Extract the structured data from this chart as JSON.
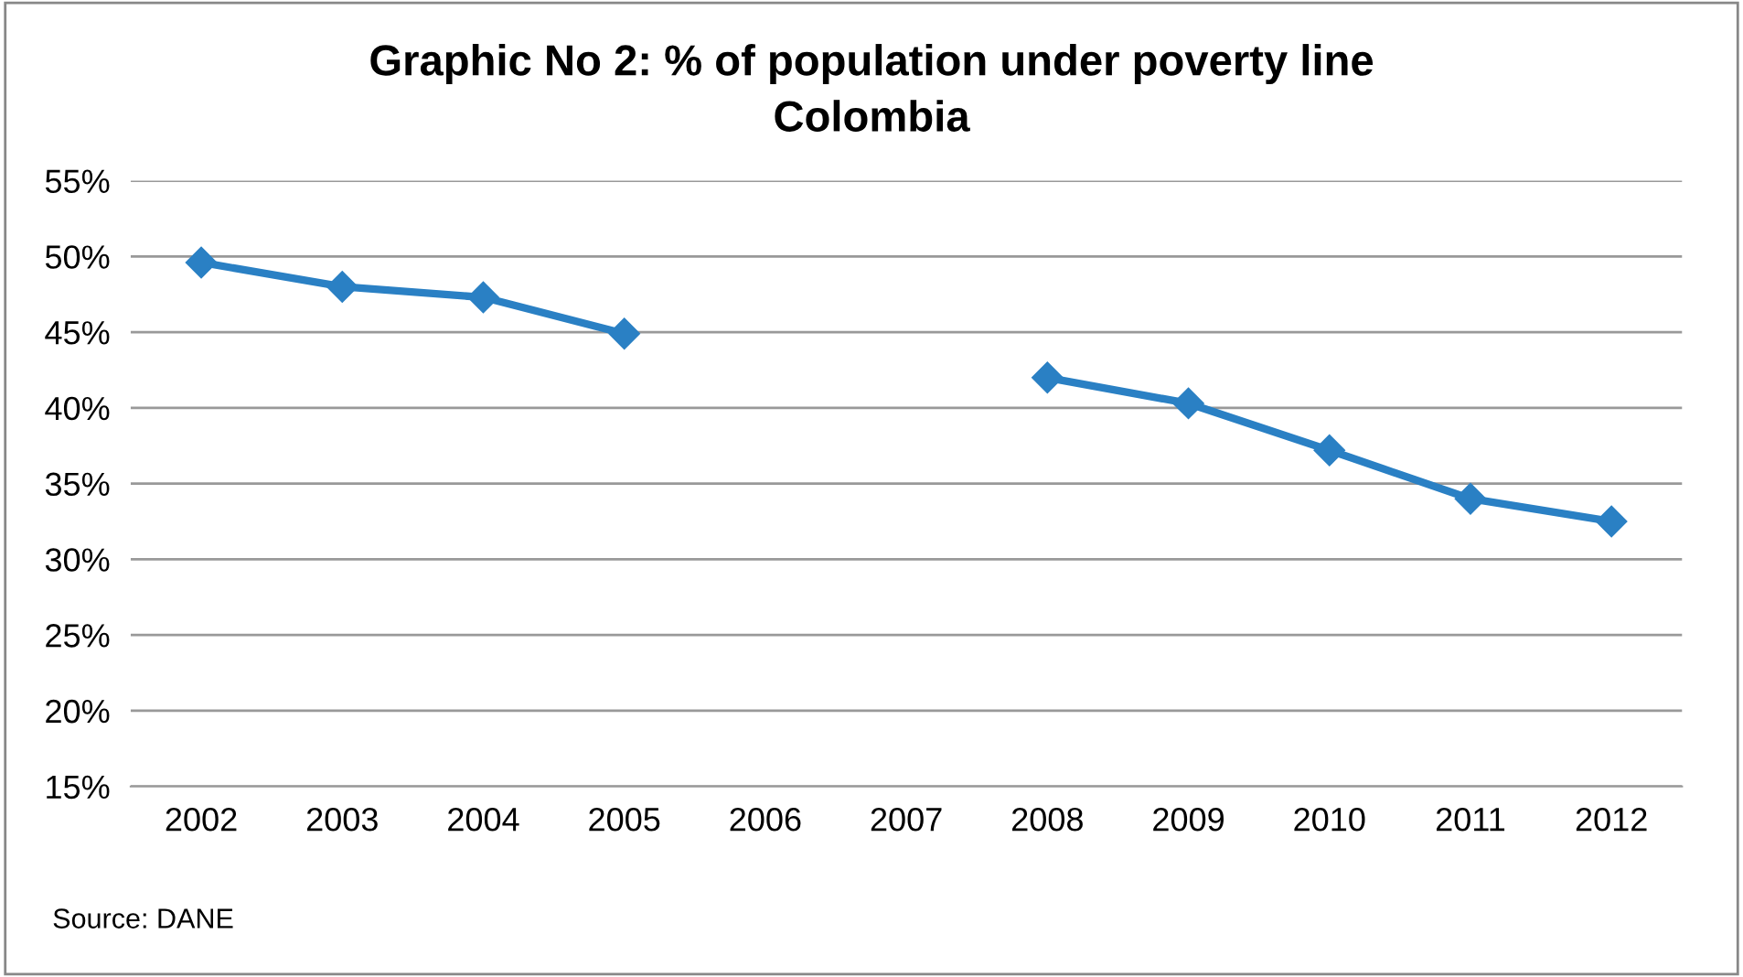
{
  "chart_data": {
    "type": "line",
    "title": "Graphic No 2: % of population under poverty line\nColombia",
    "categories": [
      "2002",
      "2003",
      "2004",
      "2005",
      "2006",
      "2007",
      "2008",
      "2009",
      "2010",
      "2011",
      "2012"
    ],
    "series": [
      {
        "color": "#2a80c4",
        "values": [
          49.6,
          48.0,
          47.3,
          44.9,
          null,
          null,
          42.0,
          40.3,
          37.2,
          34.0,
          32.5
        ]
      }
    ],
    "ylim": [
      15,
      55
    ],
    "yticks": [
      {
        "value": 15,
        "label": "15%"
      },
      {
        "value": 20,
        "label": "20%"
      },
      {
        "value": 25,
        "label": "25%"
      },
      {
        "value": 30,
        "label": "30%"
      },
      {
        "value": 35,
        "label": "35%"
      },
      {
        "value": 40,
        "label": "40%"
      },
      {
        "value": 45,
        "label": "45%"
      },
      {
        "value": 50,
        "label": "50%"
      },
      {
        "value": 55,
        "label": "55%"
      }
    ],
    "grid": "y",
    "marker": "diamond",
    "line_style": "solid",
    "annotations": [
      "Source: DANE"
    ]
  }
}
